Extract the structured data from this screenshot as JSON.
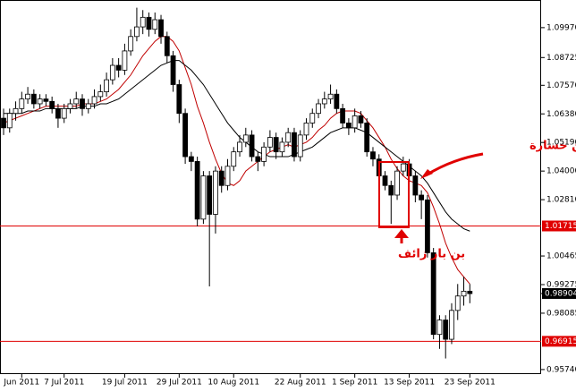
{
  "chart_data": {
    "type": "candlestick",
    "categories": [
      null,
      null,
      null,
      "Jun 2011",
      null,
      null,
      null,
      null,
      null,
      null,
      "7 Jul 2011",
      null,
      null,
      null,
      null,
      null,
      null,
      null,
      null,
      null,
      "19 Jul 2011",
      null,
      null,
      null,
      null,
      null,
      null,
      null,
      null,
      "29 Jul 2011",
      null,
      null,
      null,
      null,
      null,
      null,
      null,
      null,
      "10 Aug 2011",
      null,
      null,
      null,
      null,
      null,
      null,
      null,
      null,
      null,
      null,
      "22 Aug 2011",
      null,
      null,
      null,
      null,
      null,
      null,
      null,
      null,
      "1 Sep 2011",
      null,
      null,
      null,
      null,
      null,
      null,
      null,
      null,
      "13 Sep 2011",
      null,
      null,
      null,
      null,
      null,
      null,
      null,
      null,
      null,
      "23 Sep 2011"
    ],
    "ohlc": [
      [
        1.062,
        1.066,
        1.055,
        1.058
      ],
      [
        1.058,
        1.066,
        1.056,
        1.064
      ],
      [
        1.064,
        1.069,
        1.061,
        1.066
      ],
      [
        1.066,
        1.073,
        1.064,
        1.07
      ],
      [
        1.07,
        1.075,
        1.068,
        1.072
      ],
      [
        1.072,
        1.074,
        1.066,
        1.068
      ],
      [
        1.068,
        1.072,
        1.066,
        1.07
      ],
      [
        1.07,
        1.072,
        1.067,
        1.069
      ],
      [
        1.069,
        1.071,
        1.064,
        1.066
      ],
      [
        1.066,
        1.068,
        1.058,
        1.062
      ],
      [
        1.062,
        1.068,
        1.06,
        1.066
      ],
      [
        1.066,
        1.07,
        1.064,
        1.068
      ],
      [
        1.068,
        1.073,
        1.066,
        1.07
      ],
      [
        1.07,
        1.072,
        1.063,
        1.066
      ],
      [
        1.066,
        1.07,
        1.064,
        1.068
      ],
      [
        1.068,
        1.074,
        1.066,
        1.071
      ],
      [
        1.071,
        1.076,
        1.069,
        1.073
      ],
      [
        1.073,
        1.081,
        1.071,
        1.078
      ],
      [
        1.078,
        1.087,
        1.076,
        1.084
      ],
      [
        1.084,
        1.087,
        1.079,
        1.082
      ],
      [
        1.082,
        1.093,
        1.08,
        1.09
      ],
      [
        1.09,
        1.099,
        1.088,
        1.096
      ],
      [
        1.096,
        1.108,
        1.094,
        1.1
      ],
      [
        1.1,
        1.107,
        1.097,
        1.104
      ],
      [
        1.104,
        1.106,
        1.096,
        1.099
      ],
      [
        1.099,
        1.106,
        1.097,
        1.103
      ],
      [
        1.103,
        1.105,
        1.093,
        1.096
      ],
      [
        1.096,
        1.098,
        1.085,
        1.088
      ],
      [
        1.088,
        1.09,
        1.073,
        1.076
      ],
      [
        1.076,
        1.078,
        1.06,
        1.064
      ],
      [
        1.064,
        1.066,
        1.043,
        1.046
      ],
      [
        1.046,
        1.048,
        1.04,
        1.044
      ],
      [
        1.044,
        1.046,
        1.017,
        1.02
      ],
      [
        1.02,
        1.04,
        1.018,
        1.038
      ],
      [
        1.038,
        1.04,
        0.992,
        1.022
      ],
      [
        1.022,
        1.042,
        1.014,
        1.04
      ],
      [
        1.04,
        1.042,
        1.031,
        1.034
      ],
      [
        1.034,
        1.045,
        1.032,
        1.042
      ],
      [
        1.042,
        1.05,
        1.04,
        1.048
      ],
      [
        1.048,
        1.055,
        1.046,
        1.052
      ],
      [
        1.052,
        1.058,
        1.05,
        1.055
      ],
      [
        1.055,
        1.057,
        1.044,
        1.046
      ],
      [
        1.046,
        1.048,
        1.04,
        1.044
      ],
      [
        1.044,
        1.052,
        1.042,
        1.05
      ],
      [
        1.05,
        1.057,
        1.048,
        1.054
      ],
      [
        1.054,
        1.056,
        1.045,
        1.048
      ],
      [
        1.048,
        1.054,
        1.046,
        1.052
      ],
      [
        1.052,
        1.058,
        1.05,
        1.056
      ],
      [
        1.056,
        1.058,
        1.044,
        1.046
      ],
      [
        1.046,
        1.057,
        1.044,
        1.055
      ],
      [
        1.055,
        1.062,
        1.053,
        1.06
      ],
      [
        1.06,
        1.066,
        1.058,
        1.064
      ],
      [
        1.064,
        1.07,
        1.062,
        1.068
      ],
      [
        1.068,
        1.073,
        1.066,
        1.07
      ],
      [
        1.07,
        1.076,
        1.068,
        1.072
      ],
      [
        1.072,
        1.074,
        1.064,
        1.066
      ],
      [
        1.066,
        1.068,
        1.058,
        1.06
      ],
      [
        1.06,
        1.062,
        1.055,
        1.058
      ],
      [
        1.058,
        1.066,
        1.056,
        1.063
      ],
      [
        1.063,
        1.065,
        1.058,
        1.06
      ],
      [
        1.06,
        1.062,
        1.046,
        1.048
      ],
      [
        1.048,
        1.05,
        1.042,
        1.045
      ],
      [
        1.045,
        1.047,
        1.035,
        1.038
      ],
      [
        1.038,
        1.04,
        1.032,
        1.034
      ],
      [
        1.034,
        1.036,
        1.018,
        1.03
      ],
      [
        1.03,
        1.042,
        1.028,
        1.04
      ],
      [
        1.04,
        1.046,
        1.038,
        1.043
      ],
      [
        1.043,
        1.045,
        1.035,
        1.038
      ],
      [
        1.038,
        1.04,
        1.027,
        1.03
      ],
      [
        1.03,
        1.032,
        1.02,
        1.028
      ],
      [
        1.028,
        1.03,
        1.004,
        1.006
      ],
      [
        1.006,
        1.008,
        0.97,
        0.972
      ],
      [
        0.972,
        0.98,
        0.966,
        0.978
      ],
      [
        0.978,
        0.98,
        0.962,
        0.97
      ],
      [
        0.97,
        0.985,
        0.968,
        0.982
      ],
      [
        0.982,
        0.993,
        0.978,
        0.988
      ],
      [
        0.988,
        0.996,
        0.984,
        0.99
      ],
      [
        0.99,
        0.993,
        0.985,
        0.989
      ]
    ],
    "series": [
      {
        "color": "#c00000",
        "values": [
          1.06,
          1.061,
          1.062,
          1.063,
          1.064,
          1.065,
          1.066,
          1.067,
          1.067,
          1.067,
          1.067,
          1.067,
          1.067,
          1.068,
          1.068,
          1.068,
          1.069,
          1.07,
          1.072,
          1.074,
          1.077,
          1.08,
          1.084,
          1.088,
          1.091,
          1.094,
          1.096,
          1.096,
          1.094,
          1.09,
          1.083,
          1.076,
          1.067,
          1.06,
          1.052,
          1.045,
          1.039,
          1.035,
          1.034,
          1.036,
          1.04,
          1.042,
          1.044,
          1.046,
          1.048,
          1.049,
          1.05,
          1.051,
          1.05,
          1.051,
          1.052,
          1.054,
          1.057,
          1.059,
          1.062,
          1.064,
          1.065,
          1.065,
          1.065,
          1.064,
          1.061,
          1.058,
          1.054,
          1.05,
          1.045,
          1.041,
          1.038,
          1.036,
          1.035,
          1.034,
          1.031,
          1.025,
          1.018,
          1.01,
          1.004,
          0.999,
          0.996,
          0.993
        ]
      },
      {
        "color": "#000000",
        "values": [
          1.064,
          1.064,
          1.064,
          1.064,
          1.065,
          1.065,
          1.065,
          1.066,
          1.066,
          1.066,
          1.066,
          1.066,
          1.066,
          1.067,
          1.067,
          1.067,
          1.068,
          1.068,
          1.069,
          1.07,
          1.072,
          1.074,
          1.076,
          1.078,
          1.08,
          1.082,
          1.084,
          1.085,
          1.086,
          1.086,
          1.084,
          1.082,
          1.079,
          1.076,
          1.072,
          1.068,
          1.064,
          1.06,
          1.057,
          1.054,
          1.052,
          1.05,
          1.048,
          1.047,
          1.046,
          1.046,
          1.046,
          1.046,
          1.047,
          1.048,
          1.049,
          1.05,
          1.052,
          1.054,
          1.056,
          1.057,
          1.058,
          1.058,
          1.058,
          1.057,
          1.056,
          1.054,
          1.052,
          1.05,
          1.048,
          1.046,
          1.044,
          1.042,
          1.04,
          1.038,
          1.035,
          1.031,
          1.027,
          1.023,
          1.02,
          1.018,
          1.016,
          1.015
        ]
      }
    ],
    "ylim": [
      0.9555,
      1.1112
    ],
    "yticks": [
      {
        "value": 1.0997,
        "label": "1.09970"
      },
      {
        "value": 1.08725,
        "label": "1.08725"
      },
      {
        "value": 1.0757,
        "label": "1.07570"
      },
      {
        "value": 1.0638,
        "label": "1.06380"
      },
      {
        "value": 1.0519,
        "label": "1.05190"
      },
      {
        "value": 1.04,
        "label": "1.04000"
      },
      {
        "value": 1.0281,
        "label": "1.02810"
      },
      {
        "value": 1.00465,
        "label": "1.00465"
      },
      {
        "value": 0.99275,
        "label": "0.99275"
      },
      {
        "value": 0.98085,
        "label": "0.98085"
      },
      {
        "value": 0.9574,
        "label": "0.95740"
      }
    ],
    "hlines": [
      {
        "value": 1.01715,
        "label": "1.01715",
        "color": "#e00000"
      },
      {
        "value": 0.96915,
        "label": "0.96915",
        "color": "#e00000"
      }
    ],
    "last_price": {
      "value": 0.98904,
      "label": "0.98904"
    },
    "annotations": [
      "بيع أسفر عن خسارة",
      "بن بار زائف"
    ]
  }
}
